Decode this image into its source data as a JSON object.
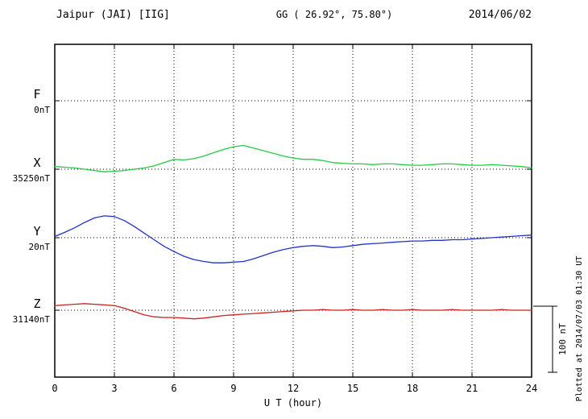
{
  "header": {
    "station": "Jaipur (JAI)  [IIG]",
    "coords": "GG ( 26.92°,  75.80°)",
    "date": "2014/06/02"
  },
  "watermark": {
    "plotted": "Plotted at 2014/07/03 01:30 UT"
  },
  "chart_data": {
    "type": "line",
    "title": "Jaipur (JAI)  [IIG]",
    "xlabel": "U T (hour)",
    "xlim": [
      0,
      24
    ],
    "x_ticks": [
      0,
      3,
      6,
      9,
      12,
      15,
      18,
      21,
      24
    ],
    "x_step_hours": 0.5,
    "grid": "dotted vertical lines every 3 hours, dotted horizontal baseline per component",
    "scale_bar": {
      "label": "100 nT",
      "nT": 100
    },
    "values_are_offsets_nT_from_baseline": true,
    "series": [
      {
        "name": "F",
        "color": "#ffa500",
        "baseline_value_label": "0nT",
        "values": []
      },
      {
        "name": "X",
        "color": "#22cc44",
        "baseline_value_label": "35250nT",
        "values": [
          4,
          3,
          2,
          0,
          -2,
          -4,
          -3,
          -2,
          0,
          2,
          5,
          10,
          15,
          14,
          16,
          20,
          25,
          30,
          34,
          36,
          32,
          28,
          24,
          20,
          17,
          15,
          15,
          13,
          10,
          9,
          8,
          8,
          7,
          8,
          8,
          7,
          6,
          6,
          7,
          8,
          8,
          7,
          6,
          6,
          7,
          6,
          5,
          4,
          2
        ]
      },
      {
        "name": "Y",
        "color": "#2233cc",
        "baseline_value_label": "20nT",
        "values": [
          2,
          8,
          15,
          23,
          30,
          33,
          32,
          26,
          17,
          7,
          -3,
          -13,
          -21,
          -28,
          -33,
          -36,
          -38,
          -38,
          -37,
          -36,
          -32,
          -27,
          -22,
          -18,
          -15,
          -13,
          -12,
          -13,
          -15,
          -14,
          -12,
          -10,
          -9,
          -8,
          -7,
          -6,
          -5,
          -5,
          -4,
          -4,
          -3,
          -3,
          -2,
          -1,
          0,
          1,
          2,
          3,
          4
        ]
      },
      {
        "name": "Z",
        "color": "#cc2222",
        "baseline_value_label": "31140nT",
        "values": [
          7,
          8,
          9,
          10,
          9,
          8,
          7,
          3,
          -2,
          -7,
          -10,
          -11,
          -11,
          -12,
          -13,
          -12,
          -10,
          -8,
          -7,
          -6,
          -5,
          -4,
          -3,
          -2,
          -1,
          0,
          0,
          1,
          0,
          0,
          1,
          0,
          0,
          1,
          0,
          0,
          1,
          0,
          0,
          0,
          1,
          0,
          0,
          0,
          0,
          1,
          0,
          0,
          0
        ]
      }
    ]
  }
}
